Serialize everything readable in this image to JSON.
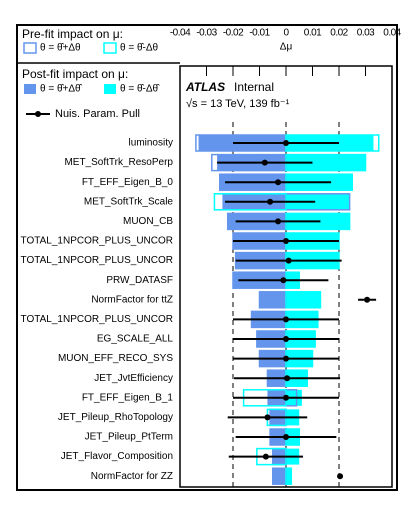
{
  "chart_data": {
    "type": "ranking",
    "x_label": "Δμ",
    "xlim": [
      -0.04,
      0.04
    ],
    "xticks": [
      -0.04,
      -0.03,
      -0.02,
      -0.01,
      0,
      0.01,
      0.02,
      0.03,
      0.04
    ],
    "pull_xlim": [
      -2,
      2
    ],
    "pull_reference_lines": [
      -1,
      0,
      1
    ],
    "experiment_label": "ATLAS",
    "status_label": "Internal",
    "energy_label": "√s = 13 TeV, 139 fb⁻¹",
    "prefit_legend_title": "Pre-fit impact on μ:",
    "postfit_legend_title": "Post-fit impact on μ:",
    "categories": [
      "luminosity",
      "MET_SoftTrk_ResoPerp",
      "FT_EFF_Eigen_B_0",
      "MET_SoftTrk_Scale",
      "MUON_CB",
      "TOTAL_1NPCOR_PLUS_UNCOR",
      "TOTAL_1NPCOR_PLUS_UNCOR",
      "PRW_DATASF",
      "NormFactor for ttZ",
      "TOTAL_1NPCOR_PLUS_UNCOR",
      "EG_SCALE_ALL",
      "MUON_EFF_RECO_SYS",
      "JET_JvtEfficiency",
      "FT_EFF_Eigen_B_1",
      "JET_Pileup_RhoTopology",
      "JET_Pileup_PtTerm",
      "JET_Flavor_Composition",
      "NormFactor for ZZ"
    ],
    "series": [
      {
        "name": "θ = θ̂+Δθ",
        "kind": "prefit",
        "color": "#6495ed",
        "values": [
          -0.034,
          -0.028,
          -0.025,
          0.024,
          -0.022,
          -0.02,
          -0.019,
          -0.02,
          -0.01,
          -0.013,
          -0.011,
          -0.01,
          -0.007,
          0.004,
          -0.006,
          -0.006,
          -0.005,
          -0.005
        ]
      },
      {
        "name": "θ = θ̂-Δθ",
        "kind": "prefit",
        "color": "#00ffff",
        "values": [
          0.035,
          0.03,
          0.025,
          -0.027,
          0.024,
          0.02,
          0.02,
          0.005,
          0.013,
          0.012,
          0.011,
          0.01,
          0.008,
          -0.016,
          -0.007,
          0.005,
          -0.011,
          0.002
        ]
      },
      {
        "name": "θ = θ̂+Δθ̂",
        "kind": "postfit",
        "color": "#6495ed",
        "values": [
          -0.033,
          -0.026,
          -0.025,
          -0.024,
          -0.022,
          -0.02,
          -0.019,
          -0.02,
          -0.01,
          -0.013,
          -0.011,
          -0.01,
          -0.007,
          -0.007,
          -0.006,
          -0.006,
          -0.005,
          -0.005
        ]
      },
      {
        "name": "θ = θ̂-Δθ̂",
        "kind": "postfit",
        "color": "#00ffff",
        "values": [
          0.033,
          0.03,
          0.025,
          0.024,
          0.024,
          0.02,
          0.02,
          0.005,
          0.013,
          0.012,
          0.011,
          0.01,
          0.008,
          0.006,
          0.005,
          0.005,
          0.005,
          0.002
        ]
      }
    ],
    "pull_name": "Nuis. Param. Pull",
    "pull_color": "#000000",
    "pulls": [
      0,
      -0.4,
      -0.15,
      -0.3,
      -0.15,
      0,
      0.05,
      -0.05,
      1.53,
      0,
      0,
      0,
      0.02,
      0,
      -0.35,
      0,
      -0.38,
      1.02
    ],
    "pull_errors": [
      1,
      0.9,
      1.0,
      0.85,
      0.8,
      1,
      1,
      0.85,
      0.17,
      1,
      1,
      1,
      1,
      1,
      0.75,
      0.95,
      0.7,
      0.05
    ]
  }
}
